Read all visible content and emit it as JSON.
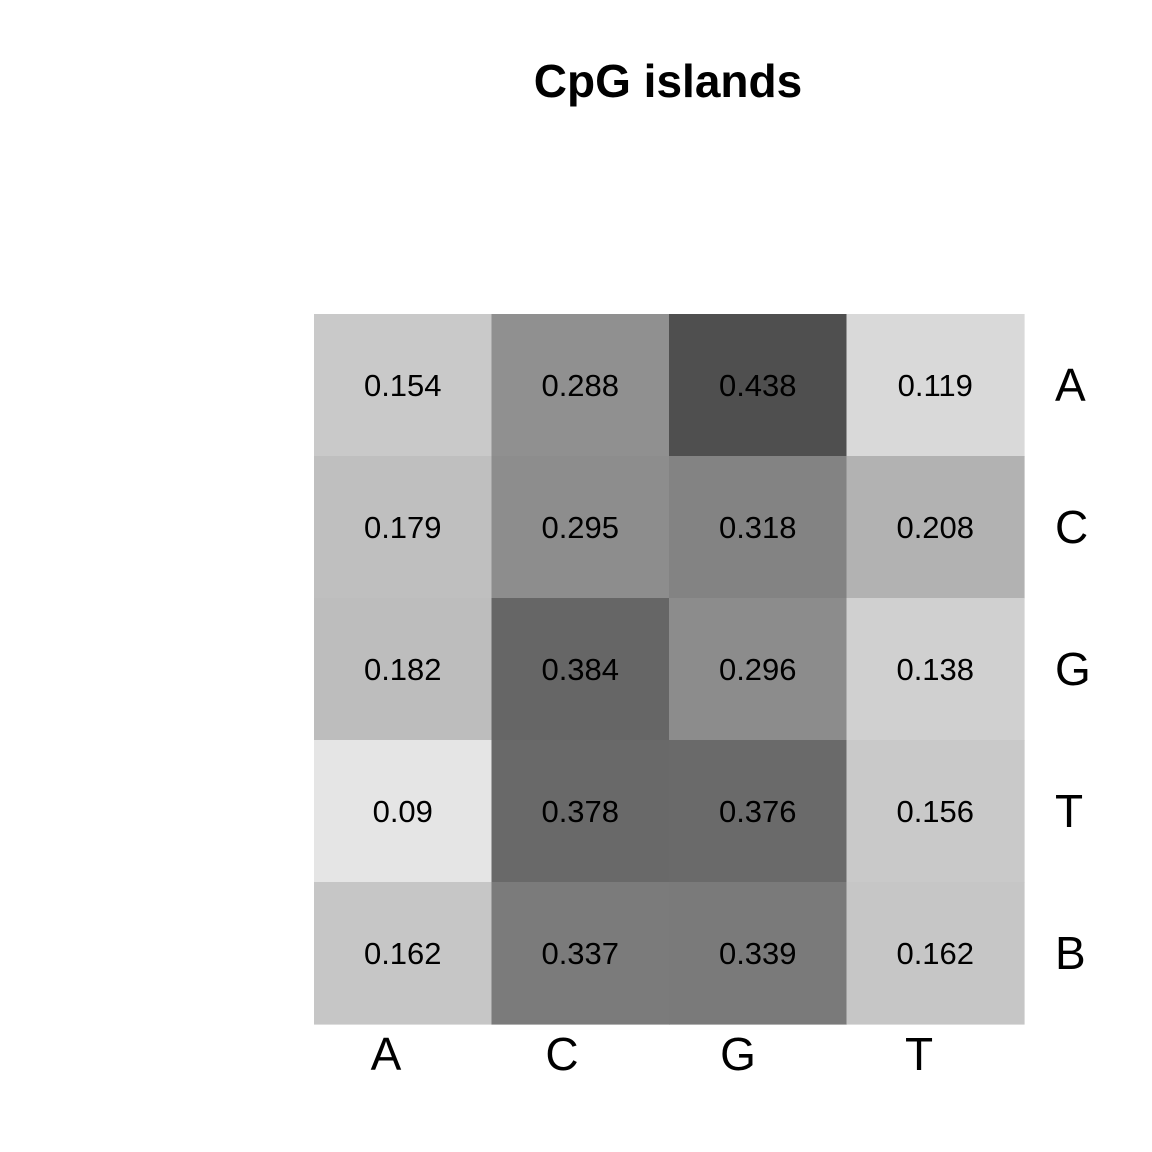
{
  "chart_data": {
    "type": "heatmap",
    "title": "CpG islands",
    "x_categories": [
      "A",
      "C",
      "G",
      "T"
    ],
    "y_categories": [
      "A",
      "C",
      "G",
      "T",
      "B"
    ],
    "values": [
      [
        0.154,
        0.288,
        0.438,
        0.119
      ],
      [
        0.179,
        0.295,
        0.318,
        0.208
      ],
      [
        0.182,
        0.384,
        0.296,
        0.138
      ],
      [
        0.09,
        0.378,
        0.376,
        0.156
      ],
      [
        0.162,
        0.337,
        0.339,
        0.162
      ]
    ],
    "value_labels": [
      [
        "0.154",
        "0.288",
        "0.438",
        "0.119"
      ],
      [
        "0.179",
        "0.295",
        "0.318",
        "0.208"
      ],
      [
        "0.182",
        "0.384",
        "0.296",
        "0.138"
      ],
      [
        "0.09",
        "0.378",
        "0.376",
        "0.156"
      ],
      [
        "0.162",
        "0.337",
        "0.339",
        "0.162"
      ]
    ],
    "colormap": "grayscale, higher values darker",
    "colors": {
      "high": "#4f4f4f",
      "low": "#e5e5e5",
      "text": "#000000"
    },
    "y_axis_position": "right",
    "x_axis_position": "bottom",
    "grid": false,
    "legend": "none"
  }
}
